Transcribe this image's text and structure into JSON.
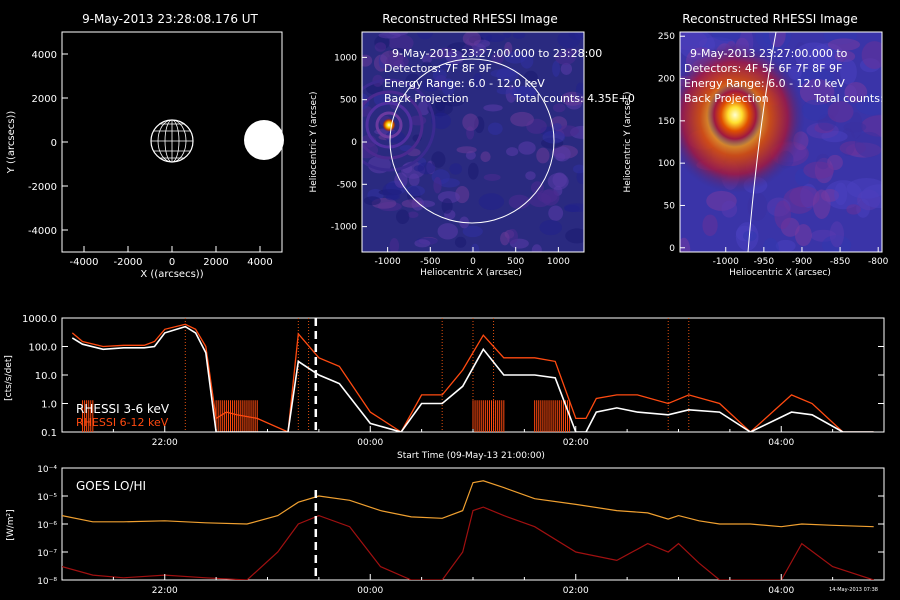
{
  "panel_orbit": {
    "title": "9-May-2013 23:28:08.176 UT",
    "xlabel": "X ((arcsecs))",
    "ylabel": "Y ((arcsecs))",
    "xticks": [
      "-4000",
      "-2000",
      "0",
      "2000",
      "4000"
    ],
    "yticks": [
      "4000",
      "2000",
      "0",
      "-2000",
      "-4000"
    ]
  },
  "panel_full": {
    "title": "Reconstructed RHESSI Image",
    "info": [
      "9-May-2013 23:27:00.000 to 23:28:00",
      "Detectors: 7F 8F 9F",
      "Energy Range: 6.0 - 12.0 keV",
      "Back Projection",
      "Total counts: 4.35E+0"
    ],
    "xlabel": "Heliocentric X (arcsec)",
    "ylabel": "Heliocentric Y (arcsec)",
    "xticks": [
      "-1000",
      "-500",
      "0",
      "500",
      "1000"
    ],
    "yticks": [
      "1000",
      "500",
      "0",
      "-500",
      "-1000"
    ]
  },
  "panel_zoom": {
    "title": "Reconstructed RHESSI Image",
    "info": [
      "9-May-2013 23:27:00.000 to",
      "Detectors: 4F 5F 6F 7F 8F 9F",
      "Energy Range: 6.0 - 12.0 keV",
      "Back Projection",
      "Total counts:"
    ],
    "xlabel": "Heliocentric X (arcsec)",
    "ylabel": "Heliocentric Y (arcsec)",
    "xticks": [
      "-1000",
      "-950",
      "-900",
      "-850",
      "-800"
    ],
    "yticks": [
      "250",
      "200",
      "150",
      "100",
      "50",
      "0"
    ]
  },
  "panel_rhessi": {
    "ylabel": "[cts/s/det]",
    "yticks": [
      "1000.0",
      "100.0",
      "10.0",
      "1.0",
      "0.1"
    ],
    "xticks": [
      "22:00",
      "00:00",
      "02:00",
      "04:00"
    ],
    "xlabel": "Start Time (09-May-13 21:00:00)",
    "legend": [
      "RHESSI  3-6 keV",
      "RHESSI  6-12 keV"
    ]
  },
  "panel_goes": {
    "legend": "GOES LO/HI",
    "ylabel": "[W/m²]",
    "yticks": [
      "10⁻⁴",
      "10⁻⁵",
      "10⁻⁶",
      "10⁻⁷",
      "10⁻⁸"
    ],
    "xticks": [
      "22:00",
      "00:00",
      "02:00",
      "04:00"
    ],
    "stamp": "14-May-2013 07:38"
  },
  "colors": {
    "rhessi_low": "#ffffff",
    "rhessi_high": "#ff4a10",
    "goes_lo": "#f0a030",
    "goes_hi": "#a01010",
    "marker": "#e05010"
  },
  "chart_data": [
    {
      "type": "line",
      "title": "9-May-2013 23:28:08.176 UT",
      "xlabel": "X ((arcsecs))",
      "ylabel": "Y ((arcsecs))",
      "xlim": [
        -5000,
        5000
      ],
      "ylim": [
        -5000,
        5000
      ],
      "sun_disk": {
        "x": 0,
        "y": 0,
        "radius": 950
      },
      "filled_circle": {
        "x": 4450,
        "y": 0,
        "radius": 950
      }
    },
    {
      "type": "heatmap",
      "title": "Reconstructed RHESSI Image",
      "xlabel": "Heliocentric X (arcsec)",
      "ylabel": "Heliocentric Y (arcsec)",
      "xlim": [
        -1300,
        1300
      ],
      "ylim": [
        -1300,
        1300
      ],
      "source": {
        "x": -950,
        "y": 180
      },
      "limb_radius": 950
    },
    {
      "type": "heatmap",
      "title": "Reconstructed RHESSI Image",
      "xlabel": "Heliocentric X (arcsec)",
      "ylabel": "Heliocentric Y (arcsec)",
      "xlim": [
        -1060,
        -795
      ],
      "ylim": [
        -5,
        255
      ],
      "source": {
        "x": -937,
        "y": 180
      }
    },
    {
      "type": "line",
      "xlabel": "Start Time (09-May-13 21:00:00)",
      "ylabel": "[cts/s/det]",
      "xlim": [
        21.0,
        29.0
      ],
      "ylim": [
        0.1,
        1000
      ],
      "yscale": "log",
      "marker_time": 23.47,
      "series": [
        {
          "name": "RHESSI  3-6 keV",
          "x": [
            21.1,
            21.2,
            21.4,
            21.6,
            21.8,
            21.9,
            22.0,
            22.2,
            22.3,
            22.4,
            22.5,
            22.6,
            22.7,
            22.9,
            23.2,
            23.3,
            23.5,
            23.7,
            24.0,
            24.3,
            24.5,
            24.7,
            24.9,
            25.1,
            25.3,
            25.6,
            25.8,
            26.0,
            26.1,
            26.2,
            26.4,
            26.6,
            26.9,
            27.1,
            27.4,
            27.7,
            28.1,
            28.3,
            28.6,
            28.9
          ],
          "y": [
            200,
            120,
            80,
            90,
            90,
            100,
            300,
            500,
            300,
            60,
            0.1,
            0.1,
            0.1,
            0.1,
            0.1,
            30,
            10,
            5,
            0.2,
            0.1,
            1,
            1,
            4,
            80,
            10,
            10,
            8,
            0.1,
            0.1,
            0.5,
            0.7,
            0.5,
            0.4,
            0.6,
            0.5,
            0.1,
            0.5,
            0.4,
            0.1,
            0.1
          ]
        },
        {
          "name": "RHESSI  6-12 keV",
          "x": [
            21.1,
            21.2,
            21.4,
            21.6,
            21.8,
            21.9,
            22.0,
            22.2,
            22.3,
            22.4,
            22.5,
            22.6,
            22.7,
            22.9,
            23.2,
            23.3,
            23.5,
            23.7,
            24.0,
            24.3,
            24.5,
            24.7,
            24.9,
            25.1,
            25.3,
            25.6,
            25.8,
            26.0,
            26.1,
            26.2,
            26.4,
            26.6,
            26.9,
            27.1,
            27.4,
            27.7,
            28.1,
            28.3,
            28.6,
            28.9
          ],
          "y": [
            300,
            150,
            100,
            110,
            110,
            150,
            400,
            600,
            400,
            100,
            0.3,
            0.5,
            0.4,
            0.3,
            0.1,
            280,
            40,
            20,
            0.5,
            0.1,
            2,
            2,
            15,
            250,
            40,
            40,
            30,
            0.3,
            0.3,
            1.5,
            2,
            2,
            1,
            2,
            1,
            0.1,
            2,
            1,
            0.1,
            0.1
          ]
        }
      ]
    },
    {
      "type": "line",
      "ylabel": "[W/m²]",
      "xlim": [
        21.0,
        29.0
      ],
      "ylim": [
        1e-08,
        0.0001
      ],
      "yscale": "log",
      "marker_time": 23.47,
      "series": [
        {
          "name": "GOES LO",
          "x": [
            21.0,
            21.3,
            21.6,
            22.0,
            22.4,
            22.8,
            23.1,
            23.3,
            23.5,
            23.8,
            24.1,
            24.4,
            24.7,
            24.9,
            25.0,
            25.1,
            25.3,
            25.6,
            26.0,
            26.4,
            26.7,
            26.9,
            27.0,
            27.2,
            27.4,
            27.7,
            28.0,
            28.2,
            28.5,
            28.9
          ],
          "y": [
            2e-06,
            1.2e-06,
            1.2e-06,
            1.3e-06,
            1.1e-06,
            1e-06,
            2e-06,
            6e-06,
            1e-05,
            7e-06,
            3e-06,
            1.8e-06,
            1.6e-06,
            3e-06,
            3e-05,
            3.5e-05,
            2e-05,
            8e-06,
            5e-06,
            3e-06,
            2.5e-06,
            1.5e-06,
            2e-06,
            1.3e-06,
            1e-06,
            1e-06,
            8e-07,
            1e-06,
            9e-07,
            8e-07
          ]
        },
        {
          "name": "GOES HI",
          "x": [
            21.0,
            21.3,
            21.6,
            22.0,
            22.4,
            22.8,
            23.1,
            23.3,
            23.5,
            23.8,
            24.1,
            24.4,
            24.7,
            24.9,
            25.0,
            25.1,
            25.3,
            25.6,
            26.0,
            26.4,
            26.7,
            26.9,
            27.0,
            27.2,
            27.4,
            27.7,
            28.0,
            28.2,
            28.5,
            28.9
          ],
          "y": [
            3e-08,
            1.5e-08,
            1.2e-08,
            1.5e-08,
            1.2e-08,
            1e-08,
            1e-07,
            1e-06,
            2e-06,
            8e-07,
            3e-08,
            1e-08,
            1e-08,
            1e-07,
            3e-06,
            4e-06,
            2e-06,
            8e-07,
            1e-07,
            5e-08,
            2e-07,
            1e-07,
            2e-07,
            4e-08,
            1e-08,
            1e-08,
            1e-08,
            2e-07,
            3e-08,
            1e-08
          ]
        }
      ]
    }
  ]
}
